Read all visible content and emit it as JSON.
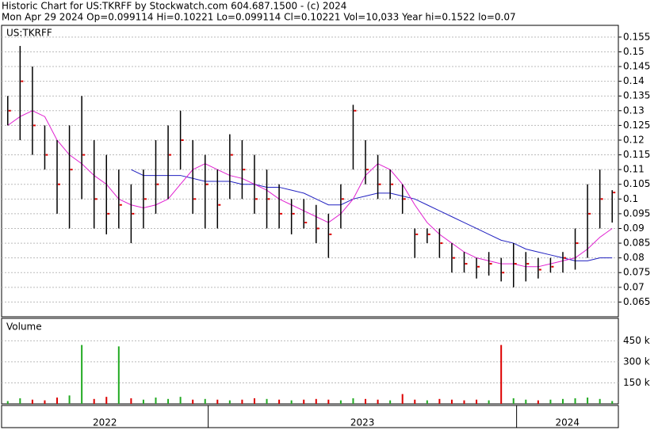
{
  "chart_data": {
    "type": "ohlc",
    "title": "Historic Chart for US:TKRFF by Stockwatch.com 604.687.1500 - (c) 2024",
    "subtitle": "Mon Apr 29 2024   Op=0.099114   Hi=0.10221   Lo=0.099114   Cl=0.10221   Vol=10,033   Year hi=0.1522   lo=0.07",
    "symbol_label": "US:TKRFF",
    "volume_label": "Volume",
    "x": [
      2022.35,
      2022.39,
      2022.43,
      2022.47,
      2022.51,
      2022.55,
      2022.59,
      2022.63,
      2022.67,
      2022.71,
      2022.75,
      2022.79,
      2022.83,
      2022.87,
      2022.91,
      2022.95,
      2022.99,
      2023.03,
      2023.07,
      2023.11,
      2023.15,
      2023.19,
      2023.23,
      2023.27,
      2023.31,
      2023.35,
      2023.39,
      2023.43,
      2023.47,
      2023.51,
      2023.55,
      2023.59,
      2023.63,
      2023.67,
      2023.71,
      2023.75,
      2023.79,
      2023.83,
      2023.87,
      2023.91,
      2023.95,
      2023.99,
      2024.03,
      2024.07,
      2024.11,
      2024.15,
      2024.19,
      2024.23,
      2024.27,
      2024.31
    ],
    "high": [
      0.135,
      0.152,
      0.145,
      0.125,
      0.12,
      0.125,
      0.135,
      0.12,
      0.115,
      0.11,
      0.105,
      0.11,
      0.12,
      0.125,
      0.13,
      0.12,
      0.115,
      0.11,
      0.122,
      0.12,
      0.115,
      0.11,
      0.105,
      0.1,
      0.1,
      0.098,
      0.095,
      0.105,
      0.132,
      0.12,
      0.115,
      0.11,
      0.105,
      0.09,
      0.09,
      0.09,
      0.085,
      0.082,
      0.08,
      0.082,
      0.08,
      0.085,
      0.082,
      0.08,
      0.08,
      0.082,
      0.09,
      0.105,
      0.11,
      0.103
    ],
    "low": [
      0.125,
      0.12,
      0.115,
      0.11,
      0.095,
      0.09,
      0.1,
      0.09,
      0.088,
      0.09,
      0.085,
      0.09,
      0.095,
      0.1,
      0.11,
      0.095,
      0.09,
      0.09,
      0.1,
      0.1,
      0.095,
      0.09,
      0.09,
      0.088,
      0.09,
      0.085,
      0.08,
      0.09,
      0.11,
      0.105,
      0.1,
      0.1,
      0.095,
      0.08,
      0.085,
      0.08,
      0.075,
      0.075,
      0.073,
      0.074,
      0.072,
      0.07,
      0.072,
      0.073,
      0.075,
      0.075,
      0.076,
      0.08,
      0.09,
      0.092
    ],
    "close": [
      0.13,
      0.14,
      0.125,
      0.115,
      0.105,
      0.11,
      0.115,
      0.1,
      0.095,
      0.098,
      0.095,
      0.1,
      0.105,
      0.115,
      0.12,
      0.1,
      0.105,
      0.098,
      0.115,
      0.11,
      0.1,
      0.1,
      0.095,
      0.095,
      0.092,
      0.09,
      0.088,
      0.1,
      0.13,
      0.11,
      0.105,
      0.105,
      0.1,
      0.088,
      0.088,
      0.085,
      0.08,
      0.078,
      0.077,
      0.078,
      0.075,
      0.078,
      0.078,
      0.076,
      0.077,
      0.08,
      0.085,
      0.095,
      0.1,
      0.10221
    ],
    "close_color": "#dd0000",
    "bar_color": "#000000",
    "ma_short": {
      "color": "#e020d0",
      "values": [
        0.125,
        0.128,
        0.13,
        0.128,
        0.12,
        0.115,
        0.112,
        0.108,
        0.105,
        0.1,
        0.098,
        0.097,
        0.098,
        0.1,
        0.105,
        0.11,
        0.112,
        0.11,
        0.108,
        0.107,
        0.105,
        0.103,
        0.1,
        0.098,
        0.096,
        0.094,
        0.092,
        0.095,
        0.1,
        0.108,
        0.112,
        0.11,
        0.105,
        0.098,
        0.092,
        0.088,
        0.085,
        0.082,
        0.08,
        0.079,
        0.078,
        0.078,
        0.077,
        0.077,
        0.078,
        0.079,
        0.08,
        0.083,
        0.087,
        0.09
      ]
    },
    "ma_long": {
      "color": "#2020c0",
      "values": [
        null,
        null,
        null,
        null,
        null,
        null,
        null,
        null,
        null,
        null,
        0.11,
        0.108,
        0.108,
        0.108,
        0.108,
        0.107,
        0.106,
        0.106,
        0.106,
        0.105,
        0.105,
        0.104,
        0.104,
        0.103,
        0.102,
        0.1,
        0.098,
        0.098,
        0.1,
        0.101,
        0.102,
        0.102,
        0.101,
        0.1,
        0.098,
        0.096,
        0.094,
        0.092,
        0.09,
        0.088,
        0.086,
        0.085,
        0.083,
        0.082,
        0.081,
        0.08,
        0.079,
        0.079,
        0.08,
        0.08
      ]
    },
    "volume": [
      20000,
      40000,
      30000,
      25000,
      45000,
      60000,
      420000,
      35000,
      50000,
      410000,
      40000,
      30000,
      45000,
      35000,
      50000,
      30000,
      35000,
      30000,
      25000,
      30000,
      40000,
      35000,
      30000,
      25000,
      30000,
      35000,
      30000,
      25000,
      40000,
      35000,
      30000,
      25000,
      70000,
      30000,
      25000,
      35000,
      30000,
      25000,
      30000,
      25000,
      420000,
      40000,
      30000,
      25000,
      30000,
      35000,
      40000,
      45000,
      35000,
      20000
    ],
    "up_color": "#22aa22",
    "down_color": "#dd0000",
    "xlim": [
      2022.33,
      2024.33
    ],
    "ylim": [
      0.06,
      0.159
    ],
    "yticks": [
      0.065,
      0.07,
      0.075,
      0.08,
      0.085,
      0.09,
      0.095,
      0.1,
      0.105,
      0.11,
      0.115,
      0.12,
      0.125,
      0.13,
      0.135,
      0.14,
      0.145,
      0.15,
      0.155
    ],
    "vol_ylim": [
      0,
      610000
    ],
    "vol_yticks": [
      {
        "value": 150000,
        "label": "150 k"
      },
      {
        "value": 300000,
        "label": "300 k"
      },
      {
        "value": 450000,
        "label": "450 k"
      }
    ],
    "xticks": [
      {
        "value": 2022.665,
        "label": "2022"
      },
      {
        "value": 2023.5,
        "label": "2023"
      },
      {
        "value": 2024.165,
        "label": "2024"
      }
    ],
    "x_dividers": [
      2023,
      2024
    ],
    "grid": true
  }
}
